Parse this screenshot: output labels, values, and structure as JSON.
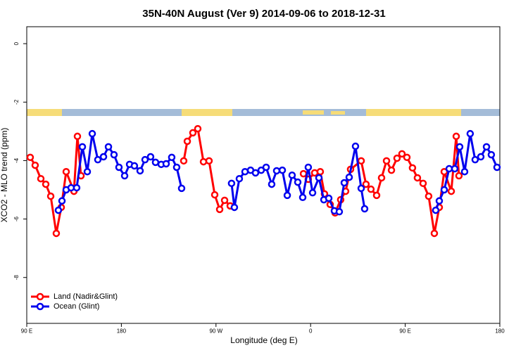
{
  "chart_data": {
    "type": "line",
    "title": "35N-40N August (Ver 9)   2014-09-06 to 2018-12-31",
    "x_label": "Longitude (deg E)",
    "y_label": "XCO2 - MLO trend (ppm)",
    "xlim": [
      90,
      540
    ],
    "ylim": [
      -9.57,
      0.58
    ],
    "xticks": [
      {
        "value": 90,
        "label": "90 E"
      },
      {
        "value": 180,
        "label": "180"
      },
      {
        "value": 270,
        "label": "90 W"
      },
      {
        "value": 360,
        "label": "0"
      },
      {
        "value": 450,
        "label": "90 E"
      },
      {
        "value": 540,
        "label": "180"
      }
    ],
    "yticks": [
      0,
      -2,
      -4,
      -6,
      -8
    ],
    "legend": "bottom-left",
    "series": [
      {
        "name": "Land (Nadir&Glint)",
        "color": "#ff0000",
        "x": [
          93.3,
          98.0,
          103.4,
          108.1,
          112.8,
          118.1,
          122.8,
          127.5,
          134.9,
          138.2,
          141.6,
          null,
          239.3,
          242.7,
          248.0,
          252.7,
          258.1,
          263.4,
          268.8,
          273.5,
          278.2,
          283.5,
          null,
          353.2,
          357.8,
          363.9,
          369.2,
          373.2,
          378.6,
          383.3,
          388.6,
          393.3,
          398.0,
          408.1,
          412.7,
          417.4,
          422.8,
          427.5,
          432.2,
          436.9,
          442.2,
          446.9,
          451.6,
          456.9,
          461.6,
          467.0,
          472.3,
          477.7,
          482.4,
          487.1,
          493.8,
          498.5,
          501.1
        ],
        "values": [
          -3.89,
          -4.16,
          -4.62,
          -4.81,
          -5.22,
          -6.49,
          -5.6,
          -4.38,
          -5.05,
          -3.17,
          -4.52,
          null,
          -4.01,
          -3.34,
          -3.05,
          -2.91,
          -4.04,
          -4.01,
          -5.17,
          -5.67,
          -5.36,
          -5.55,
          null,
          -4.45,
          -4.64,
          -4.42,
          -4.38,
          -5.14,
          -5.5,
          -5.79,
          -5.34,
          -5.05,
          -4.3,
          -4.01,
          -4.81,
          -4.98,
          -5.19,
          -4.59,
          -4.01,
          -4.33,
          -3.92,
          -3.77,
          -3.89,
          -4.25,
          -4.59,
          -4.78,
          -5.22,
          -6.49,
          -5.6,
          -4.38,
          -5.05,
          -3.17,
          -4.52
        ]
      },
      {
        "name": "Ocean (Glint)",
        "color": "#0000ee",
        "x": [
          120.1,
          123.5,
          127.5,
          132.2,
          137.5,
          142.9,
          147.6,
          152.3,
          157.6,
          163.0,
          167.7,
          173.0,
          177.7,
          183.1,
          187.8,
          192.4,
          197.8,
          202.5,
          207.8,
          212.5,
          217.9,
          222.6,
          227.9,
          232.6,
          237.3,
          null,
          284.8,
          287.5,
          292.2,
          297.6,
          302.9,
          307.6,
          313.0,
          317.7,
          323.0,
          327.7,
          333.1,
          337.8,
          342.4,
          347.8,
          352.5,
          357.8,
          361.9,
          367.9,
          372.6,
          377.3,
          382.6,
          387.3,
          392.0,
          396.7,
          402.7,
          408.1,
          411.4,
          null,
          479.0,
          482.4,
          487.1,
          491.8,
          497.1,
          501.8,
          506.5,
          511.8,
          516.5,
          521.9,
          527.3,
          531.9,
          537.3
        ],
        "values": [
          -5.7,
          -5.38,
          -5.0,
          -4.93,
          -4.93,
          -3.53,
          -4.38,
          -3.08,
          -3.97,
          -3.87,
          -3.53,
          -3.8,
          -4.23,
          -4.52,
          -4.13,
          -4.18,
          -4.35,
          -3.97,
          -3.87,
          -4.06,
          -4.13,
          -4.11,
          -3.89,
          -4.23,
          -4.95,
          null,
          -4.78,
          -5.6,
          -4.62,
          -4.38,
          -4.33,
          -4.42,
          -4.33,
          -4.23,
          -4.81,
          -4.35,
          -4.33,
          -5.19,
          -4.5,
          -4.74,
          -5.26,
          -4.23,
          -5.1,
          -4.59,
          -5.34,
          -5.29,
          -5.72,
          -5.75,
          -4.76,
          -4.57,
          -3.51,
          -4.95,
          -5.65,
          null,
          -5.7,
          -5.38,
          -5.0,
          -4.28,
          -4.28,
          -3.53,
          -4.38,
          -3.08,
          -3.97,
          -3.87,
          -3.53,
          -3.8,
          -4.23
        ]
      }
    ]
  }
}
